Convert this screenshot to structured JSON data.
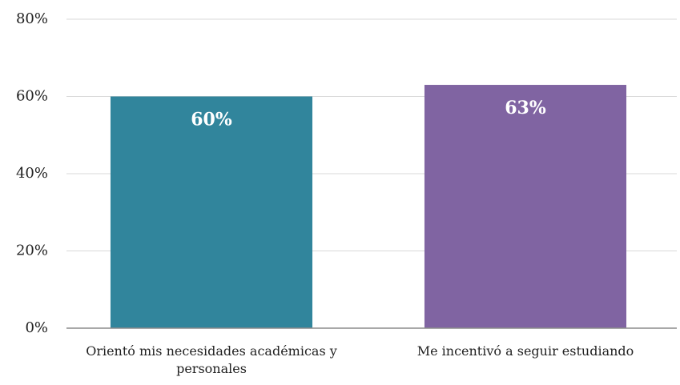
{
  "chart_data": {
    "type": "bar",
    "categories": [
      "Orientó mis necesidades académicas y personales",
      "Me incentivó a seguir estudiando"
    ],
    "values": [
      60,
      63
    ],
    "value_labels": [
      "60%",
      "63%"
    ],
    "colors": [
      "#31859c",
      "#8064a2"
    ],
    "ylim": [
      0,
      80
    ],
    "yticks": [
      {
        "value": 0,
        "label": "0%"
      },
      {
        "value": 20,
        "label": "20%"
      },
      {
        "value": 40,
        "label": "40%"
      },
      {
        "value": 60,
        "label": "60%"
      },
      {
        "value": 80,
        "label": "80%"
      }
    ],
    "grid": true
  }
}
